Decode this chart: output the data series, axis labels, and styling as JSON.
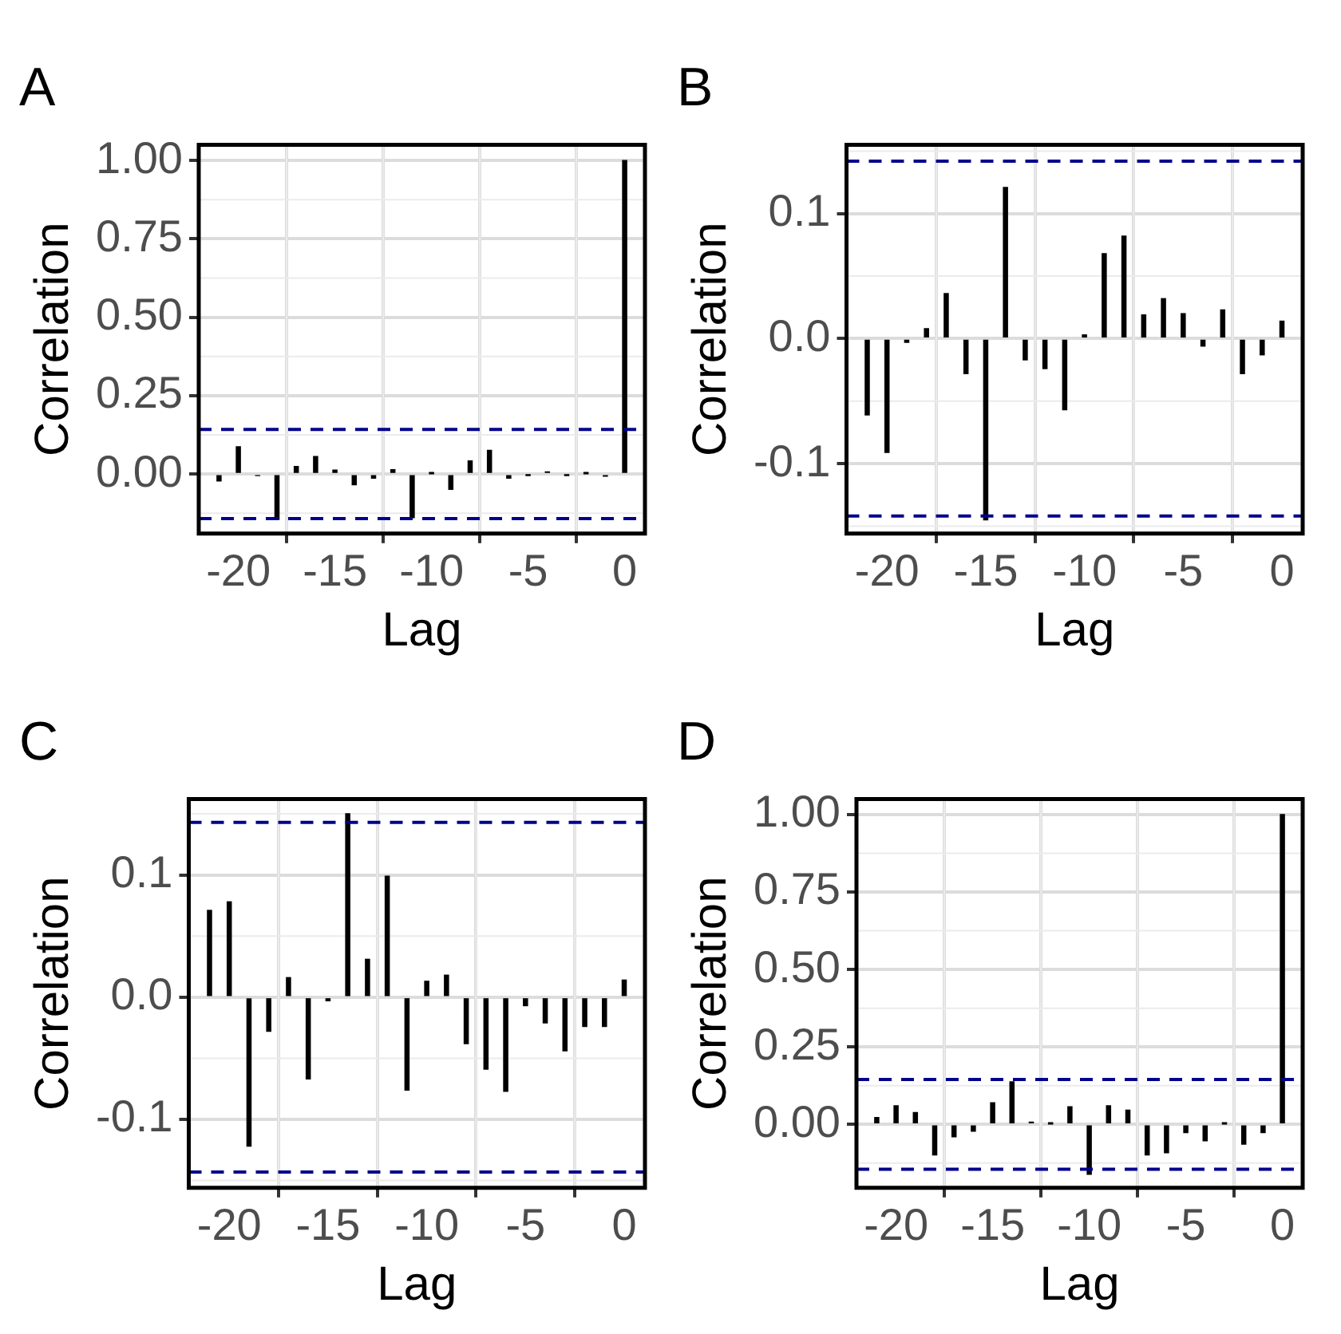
{
  "chart_data": [
    {
      "type": "bar",
      "title": "A",
      "xlabel": "Lag",
      "ylabel": "Correlation",
      "x": [
        -21,
        -20,
        -19,
        -18,
        -17,
        -16,
        -15,
        -14,
        -13,
        -12,
        -11,
        -10,
        -9,
        -8,
        -7,
        -6,
        -5,
        -4,
        -3,
        -2,
        -1,
        0
      ],
      "series": [
        {
          "color": "#000000",
          "values": [
            -0.022,
            0.087,
            -0.005,
            -0.145,
            0.024,
            0.056,
            0.013,
            -0.034,
            -0.013,
            0.014,
            -0.139,
            0.001,
            -0.049,
            0.042,
            0.076,
            -0.013,
            -0.002,
            0.007,
            -0.002,
            0.001,
            -0.007,
            1.0
          ]
        }
      ],
      "xlim": [
        -22.05,
        1.05
      ],
      "xticks": [
        -20,
        -15,
        -10,
        -5,
        0
      ],
      "ylim": [
        -0.19,
        1.05
      ],
      "yticks": [
        {
          "value": 0,
          "label": "0.00"
        },
        {
          "value": 0.25,
          "label": "0.25"
        },
        {
          "value": 0.5,
          "label": "0.50"
        },
        {
          "value": 0.75,
          "label": "0.75"
        },
        {
          "value": 1,
          "label": "1.00"
        }
      ],
      "ref_lines": [
        {
          "axis": "y",
          "value": 0.142,
          "color": "#00008b",
          "line_style": "dashed"
        },
        {
          "axis": "y",
          "value": -0.142,
          "color": "#00008b",
          "line_style": "dashed"
        }
      ],
      "grid": true,
      "legend": false
    },
    {
      "type": "bar",
      "title": "B",
      "xlabel": "Lag",
      "ylabel": "Correlation",
      "x": [
        -21,
        -20,
        -19,
        -18,
        -17,
        -16,
        -15,
        -14,
        -13,
        -12,
        -11,
        -10,
        -9,
        -8,
        -7,
        -6,
        -5,
        -4,
        -3,
        -2,
        -1,
        0
      ],
      "series": [
        {
          "color": "#000000",
          "values": [
            -0.061,
            -0.091,
            -0.003,
            0.008,
            0.036,
            -0.028,
            -0.145,
            0.121,
            -0.017,
            -0.024,
            -0.057,
            0.003,
            0.068,
            0.082,
            0.019,
            0.032,
            0.02,
            -0.006,
            0.023,
            -0.028,
            -0.013,
            0.014
          ]
        }
      ],
      "xlim": [
        -22.05,
        1.05
      ],
      "xticks": [
        -20,
        -15,
        -10,
        -5,
        0
      ],
      "ylim": [
        -0.156,
        0.155
      ],
      "yticks": [
        {
          "value": -0.1,
          "label": "-0.1"
        },
        {
          "value": 0,
          "label": "0.0"
        },
        {
          "value": 0.1,
          "label": "0.1"
        }
      ],
      "ref_lines": [
        {
          "axis": "y",
          "value": 0.142,
          "color": "#00008b",
          "line_style": "dashed"
        },
        {
          "axis": "y",
          "value": -0.142,
          "color": "#00008b",
          "line_style": "dashed"
        }
      ],
      "grid": true,
      "legend": false
    },
    {
      "type": "bar",
      "title": "C",
      "xlabel": "Lag",
      "ylabel": "Correlation",
      "x": [
        -21,
        -20,
        -19,
        -18,
        -17,
        -16,
        -15,
        -14,
        -13,
        -12,
        -11,
        -10,
        -9,
        -8,
        -7,
        -6,
        -5,
        -4,
        -3,
        -2,
        -1,
        0
      ],
      "series": [
        {
          "color": "#000000",
          "values": [
            0.071,
            0.078,
            -0.122,
            -0.028,
            0.016,
            -0.067,
            -0.003,
            0.15,
            0.031,
            0.099,
            -0.076,
            0.013,
            0.018,
            -0.038,
            -0.059,
            -0.077,
            -0.007,
            -0.021,
            -0.044,
            -0.024,
            -0.024,
            0.014
          ]
        }
      ],
      "xlim": [
        -22.05,
        1.05
      ],
      "xticks": [
        -20,
        -15,
        -10,
        -5,
        0
      ],
      "ylim": [
        -0.156,
        0.162
      ],
      "yticks": [
        {
          "value": -0.1,
          "label": "-0.1"
        },
        {
          "value": 0,
          "label": "0.0"
        },
        {
          "value": 0.1,
          "label": "0.1"
        }
      ],
      "ref_lines": [
        {
          "axis": "y",
          "value": 0.143,
          "color": "#00008b",
          "line_style": "dashed"
        },
        {
          "axis": "y",
          "value": -0.143,
          "color": "#00008b",
          "line_style": "dashed"
        }
      ],
      "grid": true,
      "legend": false
    },
    {
      "type": "bar",
      "title": "D",
      "xlabel": "Lag",
      "ylabel": "Correlation",
      "x": [
        -21,
        -20,
        -19,
        -18,
        -17,
        -16,
        -15,
        -14,
        -13,
        -12,
        -11,
        -10,
        -9,
        -8,
        -7,
        -6,
        -5,
        -4,
        -3,
        -2,
        -1,
        0
      ],
      "series": [
        {
          "color": "#000000",
          "values": [
            0.022,
            0.06,
            0.038,
            -0.099,
            -0.04,
            -0.022,
            0.07,
            0.137,
            0.007,
            0.001,
            0.057,
            -0.161,
            0.06,
            0.046,
            -0.099,
            -0.092,
            -0.027,
            -0.053,
            0.001,
            -0.064,
            -0.027,
            1.0
          ]
        }
      ],
      "xlim": [
        -22.05,
        1.05
      ],
      "xticks": [
        -20,
        -15,
        -10,
        -5,
        0
      ],
      "ylim": [
        -0.205,
        1.05
      ],
      "yticks": [
        {
          "value": 0,
          "label": "0.00"
        },
        {
          "value": 0.25,
          "label": "0.25"
        },
        {
          "value": 0.5,
          "label": "0.50"
        },
        {
          "value": 0.75,
          "label": "0.75"
        },
        {
          "value": 1,
          "label": "1.00"
        }
      ],
      "ref_lines": [
        {
          "axis": "y",
          "value": 0.145,
          "color": "#00008b",
          "line_style": "dashed"
        },
        {
          "axis": "y",
          "value": -0.145,
          "color": "#00008b",
          "line_style": "dashed"
        }
      ],
      "grid": true,
      "legend": false
    }
  ]
}
